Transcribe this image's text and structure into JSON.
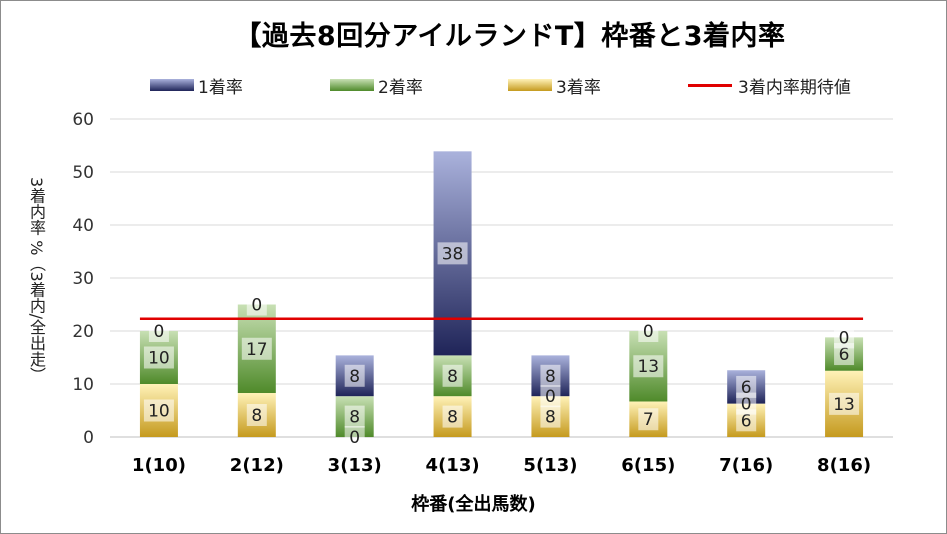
{
  "chart_data": {
    "type": "bar",
    "stacked": true,
    "title": "【過去8回分アイルランドT】枠番と3着内率",
    "xlabel": "枠番(全出馬数)",
    "ylabel": "3着内率 %（3着内/全出走）",
    "ylim": [
      0,
      60
    ],
    "yticks": [
      0,
      10,
      20,
      30,
      40,
      50,
      60
    ],
    "grid": true,
    "legend_position": "top",
    "categories": [
      "1(10)",
      "2(12)",
      "3(13)",
      "4(13)",
      "5(13)",
      "6(15)",
      "7(16)",
      "8(16)"
    ],
    "series": [
      {
        "name": "3着率",
        "values": [
          10,
          8.3,
          0,
          7.7,
          7.7,
          6.7,
          6.3,
          12.5
        ],
        "labels": [
          "10",
          "8",
          "0",
          "8",
          "8",
          "7",
          "6",
          "13"
        ],
        "color_top": "#fff2b8",
        "color_bottom": "#c59a1e"
      },
      {
        "name": "2着率",
        "values": [
          10,
          16.7,
          7.7,
          7.7,
          0,
          13.3,
          0,
          6.3
        ],
        "labels": [
          "10",
          "17",
          "8",
          "8",
          "0",
          "13",
          "0",
          "6"
        ],
        "color_top": "#c8e0b4",
        "color_bottom": "#4f8a2a"
      },
      {
        "name": "1着率",
        "values": [
          0,
          0,
          7.7,
          38.5,
          7.7,
          0,
          6.3,
          0
        ],
        "labels": [
          "0",
          "0",
          "8",
          "38",
          "8",
          "0",
          "6",
          "0"
        ],
        "color_top": "#aab2dc",
        "color_bottom": "#1f2458"
      }
    ],
    "reference_line": {
      "name": "3着内率期待値",
      "value": 22.3,
      "color": "#e00000"
    },
    "legend_order": [
      "1着率",
      "2着率",
      "3着率",
      "3着内率期待値"
    ]
  }
}
